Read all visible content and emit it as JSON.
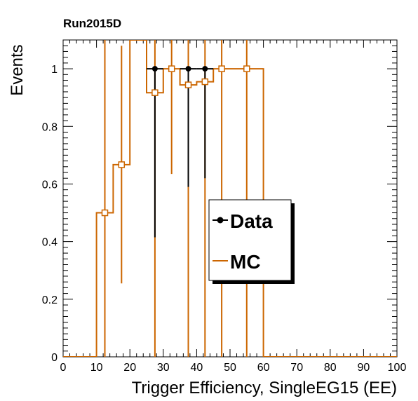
{
  "chart_data": {
    "type": "histogram",
    "title": "Run2015D",
    "xlabel": "Trigger Efficiency, SingleEG15 (EE)",
    "ylabel": "Events",
    "xlim": [
      0,
      100
    ],
    "ylim": [
      0,
      1.1
    ],
    "x_ticks": [
      0,
      10,
      20,
      30,
      40,
      50,
      60,
      70,
      80,
      90,
      100
    ],
    "y_ticks": [
      0,
      0.2,
      0.4,
      0.6,
      0.8,
      1
    ],
    "y_tick_labels": [
      "0",
      "0.2",
      "0.4",
      "0.6",
      "0.8",
      "1"
    ],
    "legend": {
      "position": "center-right",
      "entries": [
        "Data",
        "MC"
      ]
    },
    "colors": {
      "data": "#000000",
      "mc": "#cc6600"
    },
    "series": [
      {
        "name": "Data",
        "style": "points",
        "points": [
          {
            "x": 27.5,
            "y": 1.0,
            "ylow": 0.415
          },
          {
            "x": 37.5,
            "y": 1.0,
            "ylow": 0.59
          },
          {
            "x": 42.5,
            "y": 1.0,
            "ylow": 0.62
          }
        ]
      },
      {
        "name": "MC",
        "style": "step-with-errors",
        "bins": [
          {
            "xlo": 0,
            "xhi": 10,
            "y": 0
          },
          {
            "xlo": 10,
            "xhi": 12.5,
            "y": 0.5
          },
          {
            "xlo": 12.5,
            "xhi": 15,
            "y": 0.5
          },
          {
            "xlo": 15,
            "xhi": 20,
            "y": 0.667
          },
          {
            "xlo": 20,
            "xhi": 25,
            "y": 1.1
          },
          {
            "xlo": 25,
            "xhi": 30,
            "y": 0.917
          },
          {
            "xlo": 30,
            "xhi": 35,
            "y": 1.0
          },
          {
            "xlo": 35,
            "xhi": 40,
            "y": 0.944
          },
          {
            "xlo": 40,
            "xhi": 45,
            "y": 0.955
          },
          {
            "xlo": 45,
            "xhi": 50,
            "y": 1.0
          },
          {
            "xlo": 50,
            "xhi": 60,
            "y": 1.0
          },
          {
            "xlo": 60,
            "xhi": 100,
            "y": 0
          }
        ],
        "points": [
          {
            "x": 12.5,
            "y": 0.5,
            "ylow": 0.0,
            "yhigh": 1.1
          },
          {
            "x": 17.5,
            "y": 0.667,
            "ylow": 0.255,
            "yhigh": 1.08
          },
          {
            "x": 27.5,
            "y": 0.917,
            "ylow": 0.0,
            "yhigh": 1.1
          },
          {
            "x": 32.5,
            "y": 1.0,
            "ylow": 0.635,
            "yhigh": 1.1
          },
          {
            "x": 37.5,
            "y": 0.944,
            "ylow": 0.0,
            "yhigh": 1.1
          },
          {
            "x": 42.5,
            "y": 0.955,
            "ylow": 0.0,
            "yhigh": 1.1
          },
          {
            "x": 47.5,
            "y": 1.0,
            "ylow": 0.0,
            "yhigh": 1.1
          },
          {
            "x": 55.0,
            "y": 1.0,
            "ylow": 0.0,
            "yhigh": 1.1
          }
        ]
      }
    ]
  }
}
